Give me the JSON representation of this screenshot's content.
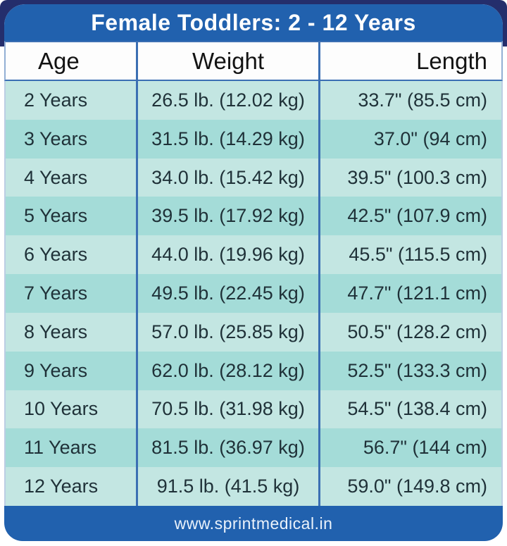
{
  "header": {
    "title": "Female Toddlers: 2 - 12 Years"
  },
  "table": {
    "columns": [
      "Age",
      "Weight",
      "Length"
    ],
    "rows": [
      {
        "age": "2 Years",
        "weight": "26.5 lb. (12.02 kg)",
        "length": "33.7\" (85.5 cm)"
      },
      {
        "age": "3 Years",
        "weight": "31.5 lb. (14.29 kg)",
        "length": "37.0\" (94 cm)"
      },
      {
        "age": "4 Years",
        "weight": "34.0 lb. (15.42 kg)",
        "length": "39.5\" (100.3 cm)"
      },
      {
        "age": "5 Years",
        "weight": "39.5 lb. (17.92 kg)",
        "length": "42.5\" (107.9 cm)"
      },
      {
        "age": "6 Years",
        "weight": "44.0 lb. (19.96 kg)",
        "length": "45.5\" (115.5 cm)"
      },
      {
        "age": "7 Years",
        "weight": "49.5 lb. (22.45 kg)",
        "length": "47.7\" (121.1 cm)"
      },
      {
        "age": "8 Years",
        "weight": "57.0 lb. (25.85 kg)",
        "length": "50.5\" (128.2 cm)"
      },
      {
        "age": "9 Years",
        "weight": "62.0 lb. (28.12 kg)",
        "length": "52.5\" (133.3 cm)"
      },
      {
        "age": "10 Years",
        "weight": "70.5 lb. (31.98 kg)",
        "length": "54.5\" (138.4 cm)"
      },
      {
        "age": "11 Years",
        "weight": "81.5 lb. (36.97 kg)",
        "length": "56.7\" (144 cm)"
      },
      {
        "age": "12 Years",
        "weight": "91.5 lb. (41.5 kg)",
        "length": "59.0\" (149.8 cm)"
      }
    ]
  },
  "footer": {
    "url": "www.sprintmedical.in"
  },
  "colors": {
    "navy_frame": "#242e6c",
    "title_bar_blue": "#2161ae",
    "footer_blue": "#2161ae",
    "divider_blue": "#3b6fb3",
    "row_light_teal": "#c3e6e2",
    "row_dark_teal": "#a4dcd8",
    "body_text": "#1f3138",
    "title_text": "#ffffff"
  },
  "chart_data": {
    "type": "table",
    "title": "Female Toddlers: 2 - 12 Years",
    "columns": [
      "Age",
      "Weight",
      "Length"
    ],
    "rows": [
      [
        "2 Years",
        "26.5 lb. (12.02 kg)",
        "33.7\" (85.5 cm)"
      ],
      [
        "3 Years",
        "31.5 lb. (14.29 kg)",
        "37.0\" (94 cm)"
      ],
      [
        "4 Years",
        "34.0 lb. (15.42 kg)",
        "39.5\" (100.3 cm)"
      ],
      [
        "5 Years",
        "39.5 lb. (17.92 kg)",
        "42.5\" (107.9 cm)"
      ],
      [
        "6 Years",
        "44.0 lb. (19.96 kg)",
        "45.5\" (115.5 cm)"
      ],
      [
        "7 Years",
        "49.5 lb. (22.45 kg)",
        "47.7\" (121.1 cm)"
      ],
      [
        "8 Years",
        "57.0 lb. (25.85 kg)",
        "50.5\" (128.2 cm)"
      ],
      [
        "9 Years",
        "62.0 lb. (28.12 kg)",
        "52.5\" (133.3 cm)"
      ],
      [
        "10 Years",
        "70.5 lb. (31.98 kg)",
        "54.5\" (138.4 cm)"
      ],
      [
        "11 Years",
        "81.5 lb. (36.97 kg)",
        "56.7\" (144 cm)"
      ],
      [
        "12 Years",
        "91.5 lb. (41.5 kg)",
        "59.0\" (149.8 cm)"
      ]
    ],
    "ages_years": [
      2,
      3,
      4,
      5,
      6,
      7,
      8,
      9,
      10,
      11,
      12
    ],
    "weight_lb": [
      26.5,
      31.5,
      34.0,
      39.5,
      44.0,
      49.5,
      57.0,
      62.0,
      70.5,
      81.5,
      91.5
    ],
    "weight_kg": [
      12.02,
      14.29,
      15.42,
      17.92,
      19.96,
      22.45,
      25.85,
      28.12,
      31.98,
      36.97,
      41.5
    ],
    "length_in": [
      33.7,
      37.0,
      39.5,
      42.5,
      45.5,
      47.7,
      50.5,
      52.5,
      54.5,
      56.7,
      59.0
    ],
    "length_cm": [
      85.5,
      94,
      100.3,
      107.9,
      115.5,
      121.1,
      128.2,
      133.3,
      138.4,
      144,
      149.8
    ]
  }
}
